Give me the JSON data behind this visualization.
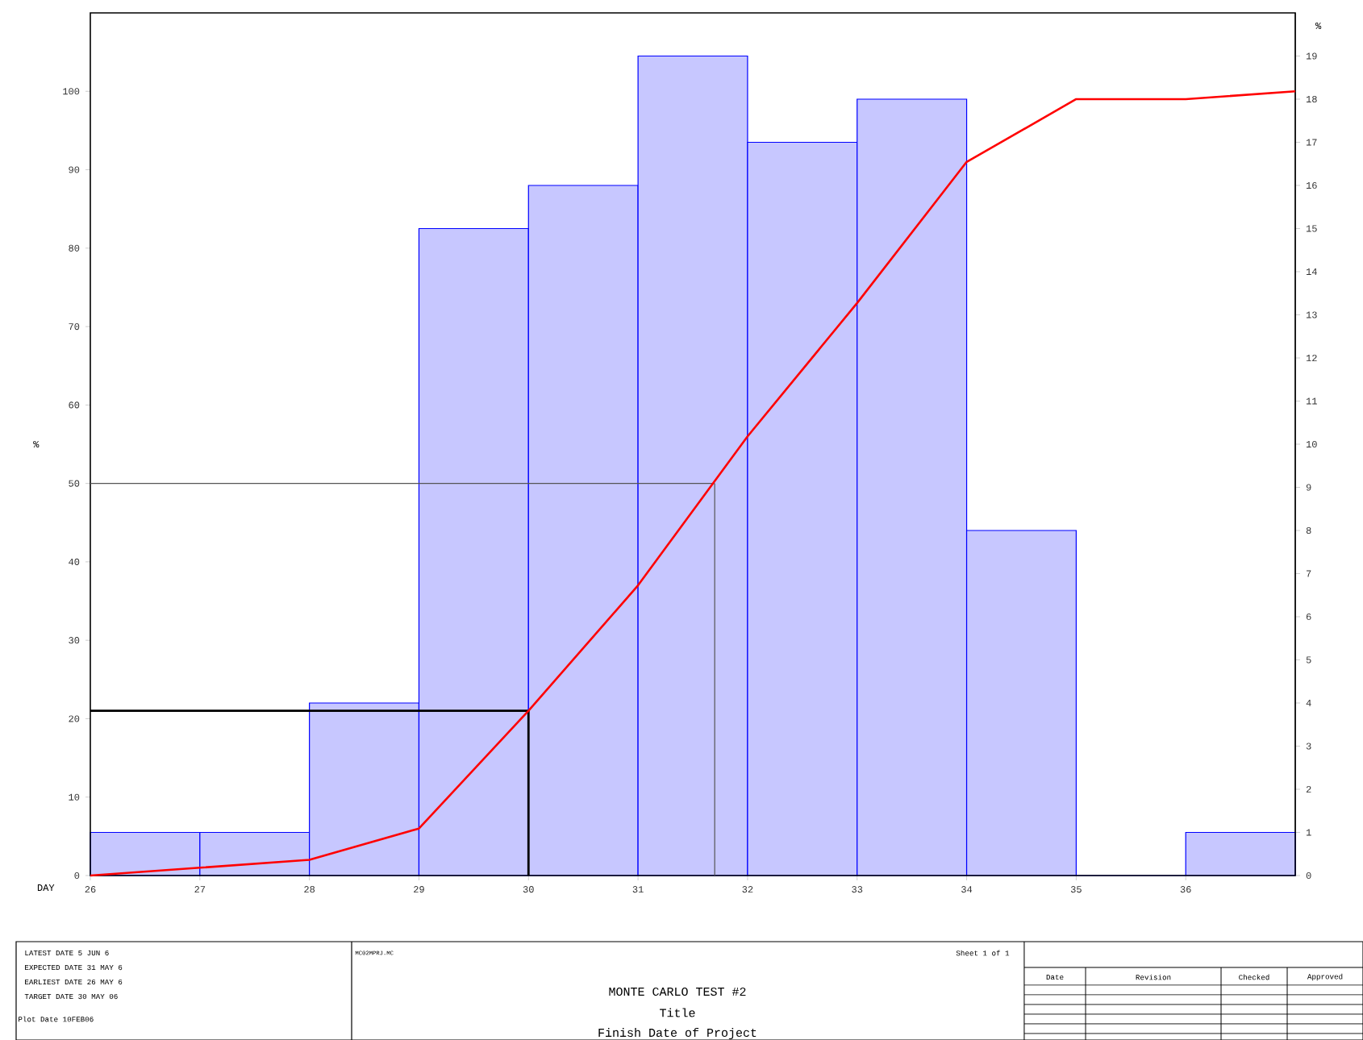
{
  "chart_data": {
    "type": "histogram",
    "title": "MONTE CARLO TEST #2",
    "subtitle": "Finish Date of Project",
    "xlabel": "DAY",
    "ylabel": "%",
    "y2label": "%",
    "bins": [
      26,
      27,
      28,
      29,
      30,
      31,
      32,
      33,
      34,
      35,
      36,
      37
    ],
    "series": [
      {
        "axis": "y2",
        "color": "#0000ff",
        "values": [
          1,
          1,
          4,
          15,
          16,
          19,
          17,
          18,
          8,
          0,
          1
        ]
      },
      {
        "type": "line",
        "axis": "y",
        "color": "#ff0000",
        "x": [
          26,
          27,
          28,
          29,
          30,
          31,
          32,
          33,
          34,
          35,
          36,
          37
        ],
        "values": [
          0,
          1,
          2,
          6,
          21,
          37,
          56,
          73,
          91,
          99,
          99,
          100
        ]
      }
    ],
    "xlim": [
      26,
      37
    ],
    "xticks": [
      26,
      27,
      28,
      29,
      30,
      31,
      32,
      33,
      34,
      35,
      36
    ],
    "ylim": [
      0,
      110
    ],
    "yticks": [
      0,
      10,
      20,
      30,
      40,
      50,
      60,
      70,
      80,
      90,
      100
    ],
    "y2lim": [
      0,
      20
    ],
    "y2ticks": [
      0,
      1,
      2,
      3,
      4,
      5,
      6,
      7,
      8,
      9,
      10,
      11,
      12,
      13,
      14,
      15,
      16,
      17,
      18,
      19
    ],
    "ref_lines": [
      {
        "axis": "y",
        "value": 50,
        "color": "#555555"
      },
      {
        "axis": "x",
        "value": 31.7,
        "color": "#555555"
      },
      {
        "axis": "y",
        "value": 21,
        "color": "#000000"
      },
      {
        "axis": "x",
        "value": 30,
        "color": "#000000"
      }
    ],
    "annotations": [
      "LATEST DATE 5 JUN 6",
      "EXPECTED DATE 31 MAY 6",
      "EARLIEST DATE 26 MAY 6",
      "TARGET DATE 30 MAY 06",
      "Plot Date 10FEB06",
      "MC02MPRJ.MC",
      "Sheet 1 of 1",
      "Title",
      "Date",
      "Revision",
      "Checked",
      "Approved"
    ]
  }
}
